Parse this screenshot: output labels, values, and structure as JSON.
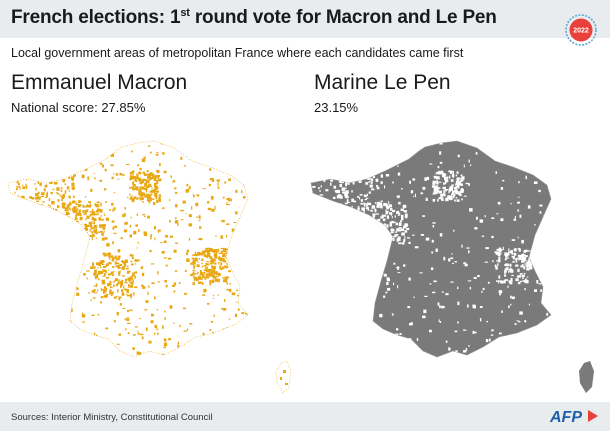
{
  "header": {
    "title_part1": "French elections: 1",
    "title_sup": "st",
    "title_part2": " round vote for Macron and Le Pen",
    "badge_year": "2022"
  },
  "subtitle": "Local government areas of metropolitan France where each candidates came first",
  "candidates": [
    {
      "name": "Emmanuel Macron",
      "score_text": "National score: 27.85%",
      "color": "#e8a713",
      "map_icon": "france-map-macron"
    },
    {
      "name": "Marine Le Pen",
      "score_text": "23.15%",
      "color": "#7a7a7a",
      "map_icon": "france-map-le-pen"
    }
  ],
  "footer": {
    "source": "Sources: Interior Ministry, Constitutional Council",
    "logo": "AFP"
  },
  "colors": {
    "band": "#e9ecef",
    "badge_red": "#e8403b",
    "badge_ring": "#5aa7d6",
    "afp_blue": "#1f5fa8"
  }
}
